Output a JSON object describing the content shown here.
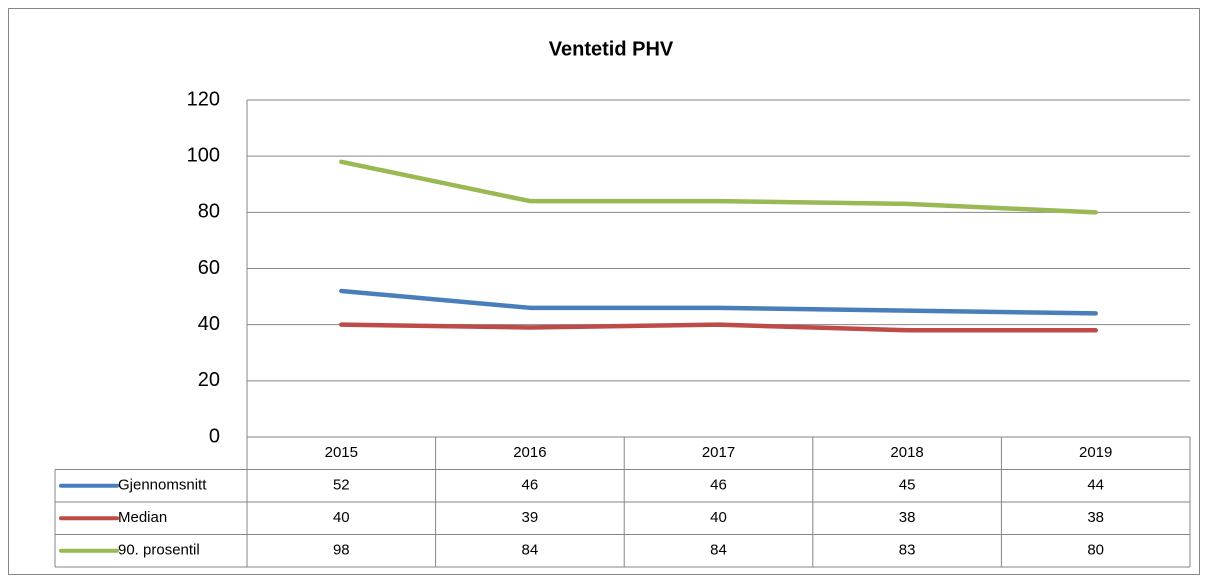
{
  "chart_data": {
    "type": "line",
    "title": "Ventetid PHV",
    "categories": [
      "2015",
      "2016",
      "2017",
      "2018",
      "2019"
    ],
    "series": [
      {
        "name": "Gjennomsnitt",
        "color": "#4a7ebb",
        "values": [
          52,
          46,
          46,
          45,
          44
        ]
      },
      {
        "name": "Median",
        "color": "#be4b48",
        "values": [
          40,
          39,
          40,
          38,
          38
        ]
      },
      {
        "name": "90. prosentil",
        "color": "#98b954",
        "values": [
          98,
          84,
          84,
          83,
          80
        ]
      }
    ],
    "ylim": [
      0,
      120
    ],
    "yticks": [
      0,
      20,
      40,
      60,
      80,
      100,
      120
    ],
    "grid": true,
    "data_table": true
  }
}
